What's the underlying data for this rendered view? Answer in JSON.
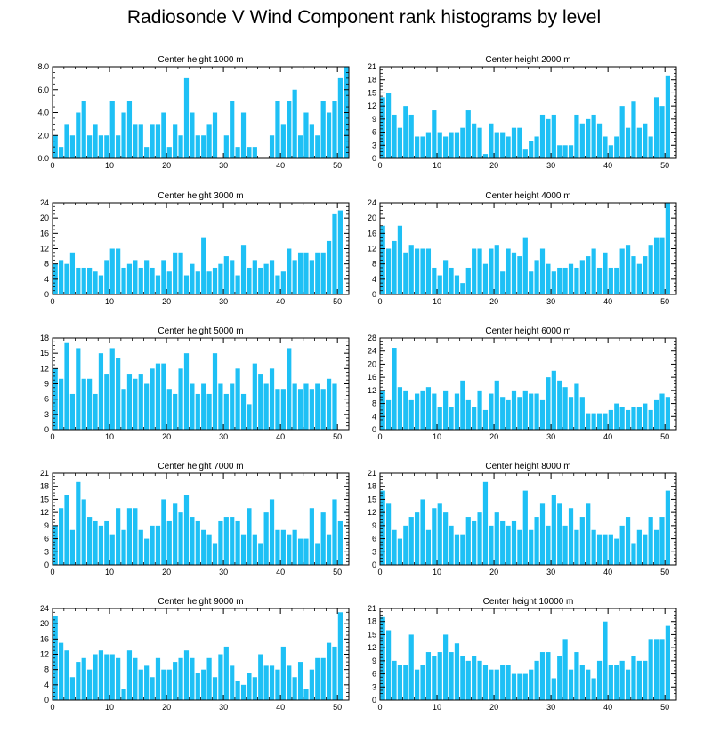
{
  "title": "Radiosonde V Wind Component rank histograms by level",
  "colors": {
    "bar": "#1ec0f5",
    "axis": "#000000",
    "background": "#ffffff"
  },
  "chart_data": [
    {
      "type": "bar",
      "title": "Center height 1000 m",
      "xlim": [
        0,
        52
      ],
      "ylim": [
        0,
        8
      ],
      "yticks": [
        0,
        2,
        4,
        6,
        8
      ],
      "ytick_labels": [
        "0.0",
        "2.0",
        "4.0",
        "6.0",
        "8.0"
      ],
      "xticks": [
        0,
        10,
        20,
        30,
        40,
        50
      ],
      "values": [
        2,
        1,
        3,
        2,
        4,
        5,
        2,
        3,
        2,
        2,
        5,
        2,
        4,
        5,
        3,
        3,
        1,
        3,
        3,
        4,
        1,
        3,
        2,
        7,
        4,
        2,
        2,
        3,
        4,
        0,
        2,
        5,
        1,
        4,
        1,
        1,
        0,
        0,
        2,
        5,
        3,
        5,
        6,
        2,
        4,
        3,
        2,
        5,
        4,
        5,
        7,
        8
      ]
    },
    {
      "type": "bar",
      "title": "Center height 2000 m",
      "xlim": [
        0,
        52
      ],
      "ylim": [
        0,
        21
      ],
      "yticks": [
        0,
        3,
        6,
        9,
        12,
        15,
        18,
        21
      ],
      "ytick_labels": [
        "0",
        "3",
        "6",
        "9",
        "12",
        "15",
        "18",
        "21"
      ],
      "xticks": [
        0,
        10,
        20,
        30,
        40,
        50
      ],
      "values": [
        14,
        15,
        10,
        7,
        12,
        10,
        5,
        5,
        6,
        11,
        6,
        5,
        6,
        6,
        7,
        11,
        8,
        7,
        1,
        8,
        6,
        6,
        5,
        7,
        7,
        2,
        4,
        5,
        10,
        9,
        10,
        3,
        3,
        3,
        10,
        8,
        9,
        10,
        8,
        5,
        3,
        5,
        12,
        7,
        13,
        7,
        8,
        5,
        14,
        12,
        19,
        0
      ]
    },
    {
      "type": "bar",
      "title": "Center height 3000 m",
      "xlim": [
        0,
        52
      ],
      "ylim": [
        0,
        24
      ],
      "yticks": [
        0,
        4,
        8,
        12,
        16,
        20,
        24
      ],
      "ytick_labels": [
        "0",
        "4",
        "8",
        "12",
        "16",
        "20",
        "24"
      ],
      "xticks": [
        0,
        10,
        20,
        30,
        40,
        50
      ],
      "values": [
        8,
        9,
        8,
        11,
        7,
        7,
        7,
        6,
        5,
        9,
        12,
        12,
        7,
        8,
        9,
        7,
        9,
        7,
        5,
        9,
        6,
        11,
        11,
        5,
        8,
        6,
        15,
        6,
        7,
        8,
        10,
        9,
        5,
        13,
        7,
        9,
        7,
        8,
        9,
        5,
        6,
        12,
        9,
        11,
        11,
        9,
        11,
        11,
        14,
        21,
        22,
        0
      ]
    },
    {
      "type": "bar",
      "title": "Center height 4000 m",
      "xlim": [
        0,
        52
      ],
      "ylim": [
        0,
        24
      ],
      "yticks": [
        0,
        4,
        8,
        12,
        16,
        20,
        24
      ],
      "ytick_labels": [
        "0",
        "4",
        "8",
        "12",
        "16",
        "20",
        "24"
      ],
      "xticks": [
        0,
        10,
        20,
        30,
        40,
        50
      ],
      "values": [
        18,
        12,
        14,
        18,
        11,
        13,
        12,
        12,
        12,
        7,
        5,
        9,
        7,
        5,
        3,
        7,
        12,
        12,
        8,
        12,
        13,
        6,
        12,
        11,
        10,
        15,
        6,
        9,
        12,
        8,
        6,
        7,
        7,
        8,
        7,
        9,
        10,
        12,
        7,
        11,
        7,
        7,
        12,
        13,
        10,
        8,
        10,
        13,
        15,
        15,
        24,
        0
      ]
    },
    {
      "type": "bar",
      "title": "Center height 5000 m",
      "xlim": [
        0,
        52
      ],
      "ylim": [
        0,
        18
      ],
      "yticks": [
        0,
        3,
        6,
        9,
        12,
        15,
        18
      ],
      "ytick_labels": [
        "0",
        "3",
        "6",
        "9",
        "12",
        "15",
        "18"
      ],
      "xticks": [
        0,
        10,
        20,
        30,
        40,
        50
      ],
      "values": [
        12,
        10,
        17,
        7,
        16,
        10,
        10,
        7,
        15,
        11,
        16,
        14,
        8,
        11,
        10,
        11,
        9,
        12,
        13,
        13,
        8,
        7,
        12,
        15,
        9,
        7,
        9,
        7,
        15,
        9,
        7,
        9,
        12,
        7,
        5,
        13,
        11,
        9,
        12,
        8,
        8,
        16,
        9,
        8,
        9,
        8,
        9,
        8,
        10,
        9,
        0,
        0
      ]
    },
    {
      "type": "bar",
      "title": "Center height 6000 m",
      "xlim": [
        0,
        52
      ],
      "ylim": [
        0,
        28
      ],
      "yticks": [
        0,
        4,
        8,
        12,
        16,
        20,
        24,
        28
      ],
      "ytick_labels": [
        "0",
        "4",
        "8",
        "12",
        "16",
        "20",
        "24",
        "28"
      ],
      "xticks": [
        0,
        10,
        20,
        30,
        40,
        50
      ],
      "values": [
        12,
        9,
        25,
        13,
        12,
        9,
        11,
        12,
        13,
        11,
        7,
        12,
        7,
        11,
        15,
        9,
        7,
        12,
        6,
        11,
        15,
        10,
        9,
        12,
        10,
        12,
        11,
        11,
        9,
        16,
        18,
        15,
        13,
        10,
        14,
        10,
        5,
        5,
        5,
        5,
        6,
        8,
        7,
        6,
        7,
        7,
        8,
        6,
        9,
        11,
        10,
        0
      ]
    },
    {
      "type": "bar",
      "title": "Center height 7000 m",
      "xlim": [
        0,
        52
      ],
      "ylim": [
        0,
        21
      ],
      "yticks": [
        0,
        3,
        6,
        9,
        12,
        15,
        18,
        21
      ],
      "ytick_labels": [
        "0",
        "3",
        "6",
        "9",
        "12",
        "15",
        "18",
        "21"
      ],
      "xticks": [
        0,
        10,
        20,
        30,
        40,
        50
      ],
      "values": [
        9,
        13,
        16,
        8,
        19,
        15,
        11,
        10,
        9,
        10,
        7,
        13,
        8,
        13,
        13,
        8,
        6,
        9,
        9,
        15,
        10,
        14,
        12,
        16,
        11,
        10,
        8,
        7,
        5,
        10,
        11,
        11,
        10,
        7,
        13,
        7,
        5,
        12,
        15,
        8,
        8,
        7,
        8,
        6,
        6,
        13,
        5,
        12,
        7,
        15,
        10,
        0
      ]
    },
    {
      "type": "bar",
      "title": "Center height 8000 m",
      "xlim": [
        0,
        52
      ],
      "ylim": [
        0,
        21
      ],
      "yticks": [
        0,
        3,
        6,
        9,
        12,
        15,
        18,
        21
      ],
      "ytick_labels": [
        "0",
        "3",
        "6",
        "9",
        "12",
        "15",
        "18",
        "21"
      ],
      "xticks": [
        0,
        10,
        20,
        30,
        40,
        50
      ],
      "values": [
        17,
        14,
        8,
        6,
        9,
        11,
        12,
        15,
        8,
        13,
        14,
        12,
        9,
        7,
        7,
        11,
        10,
        12,
        19,
        9,
        12,
        10,
        9,
        10,
        8,
        17,
        8,
        11,
        14,
        9,
        16,
        14,
        9,
        13,
        8,
        11,
        14,
        8,
        7,
        7,
        7,
        6,
        9,
        11,
        5,
        8,
        7,
        11,
        8,
        11,
        17,
        0
      ]
    },
    {
      "type": "bar",
      "title": "Center height 9000 m",
      "xlim": [
        0,
        52
      ],
      "ylim": [
        0,
        24
      ],
      "yticks": [
        0,
        4,
        8,
        12,
        16,
        20,
        24
      ],
      "ytick_labels": [
        "0",
        "4",
        "8",
        "12",
        "16",
        "20",
        "24"
      ],
      "xticks": [
        0,
        10,
        20,
        30,
        40,
        50
      ],
      "values": [
        22,
        15,
        13,
        6,
        10,
        11,
        8,
        12,
        13,
        12,
        12,
        11,
        3,
        13,
        11,
        8,
        9,
        6,
        11,
        8,
        8,
        10,
        11,
        13,
        11,
        7,
        8,
        11,
        6,
        12,
        14,
        9,
        5,
        4,
        7,
        6,
        12,
        9,
        9,
        8,
        14,
        9,
        6,
        10,
        3,
        8,
        11,
        11,
        15,
        14,
        23,
        0
      ]
    },
    {
      "type": "bar",
      "title": "Center height 10000 m",
      "xlim": [
        0,
        52
      ],
      "ylim": [
        0,
        21
      ],
      "yticks": [
        0,
        3,
        6,
        9,
        12,
        15,
        18,
        21
      ],
      "ytick_labels": [
        "0",
        "3",
        "6",
        "9",
        "12",
        "15",
        "18",
        "21"
      ],
      "xticks": [
        0,
        10,
        20,
        30,
        40,
        50
      ],
      "values": [
        19,
        16,
        9,
        8,
        8,
        15,
        7,
        8,
        11,
        10,
        11,
        15,
        11,
        13,
        10,
        9,
        10,
        9,
        8,
        7,
        7,
        8,
        8,
        6,
        6,
        6,
        7,
        9,
        11,
        11,
        5,
        10,
        14,
        7,
        11,
        8,
        7,
        5,
        9,
        18,
        8,
        8,
        9,
        7,
        10,
        9,
        9,
        14,
        14,
        14,
        17,
        0
      ]
    }
  ]
}
